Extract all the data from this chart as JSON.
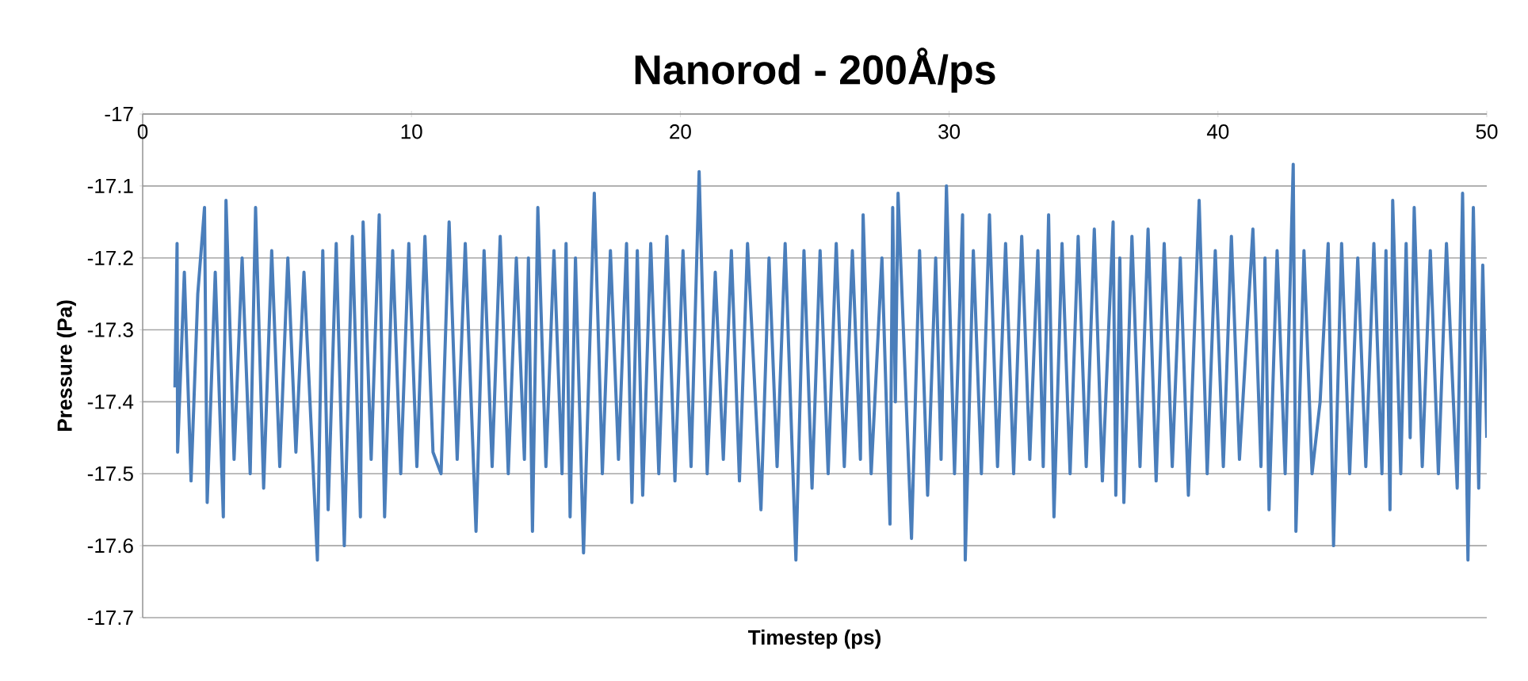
{
  "chart_data": {
    "type": "line",
    "title": "Nanorod - 200Å/ps",
    "xlabel": "Timestep (ps)",
    "ylabel": "Pressure (Pa)",
    "xlim": [
      0,
      50
    ],
    "ylim": [
      -17.7,
      -17
    ],
    "xticks": [
      0,
      10,
      20,
      30,
      40,
      50
    ],
    "yticks": [
      -17.7,
      -17.6,
      -17.5,
      -17.4,
      -17.3,
      -17.2,
      -17.1,
      -17
    ],
    "grid": "y",
    "legend": false,
    "line_style": "solid",
    "x": [
      1.2,
      1.28,
      1.3,
      1.55,
      1.8,
      2.05,
      2.3,
      2.4,
      2.7,
      3.0,
      3.1,
      3.4,
      3.7,
      4.0,
      4.2,
      4.5,
      4.8,
      5.1,
      5.4,
      5.7,
      6.0,
      6.5,
      6.7,
      6.9,
      7.2,
      7.5,
      7.8,
      8.1,
      8.2,
      8.5,
      8.8,
      9.0,
      9.3,
      9.6,
      9.9,
      10.2,
      10.5,
      10.8,
      11.1,
      11.4,
      11.7,
      12.0,
      12.4,
      12.7,
      13.0,
      13.3,
      13.6,
      13.9,
      14.2,
      14.35,
      14.5,
      14.7,
      15.0,
      15.3,
      15.6,
      15.75,
      15.9,
      16.1,
      16.4,
      16.8,
      17.1,
      17.4,
      17.7,
      18.0,
      18.2,
      18.4,
      18.6,
      18.9,
      19.2,
      19.5,
      19.8,
      20.1,
      20.4,
      20.7,
      21.0,
      21.3,
      21.6,
      21.9,
      22.2,
      22.5,
      23.0,
      23.3,
      23.6,
      23.9,
      24.3,
      24.6,
      24.9,
      25.2,
      25.5,
      25.8,
      26.1,
      26.4,
      26.7,
      26.8,
      27.1,
      27.5,
      27.8,
      27.9,
      28.0,
      28.1,
      28.6,
      28.9,
      29.2,
      29.5,
      29.7,
      29.9,
      30.2,
      30.5,
      30.6,
      30.9,
      31.2,
      31.5,
      31.8,
      32.1,
      32.4,
      32.7,
      33.0,
      33.3,
      33.5,
      33.7,
      33.9,
      34.2,
      34.5,
      34.8,
      35.1,
      35.4,
      35.7,
      36.1,
      36.2,
      36.35,
      36.5,
      36.8,
      37.1,
      37.4,
      37.7,
      38.0,
      38.3,
      38.6,
      38.9,
      39.3,
      39.6,
      39.9,
      40.2,
      40.5,
      40.8,
      41.3,
      41.6,
      41.75,
      41.9,
      42.2,
      42.5,
      42.8,
      42.9,
      43.2,
      43.5,
      43.8,
      44.1,
      44.3,
      44.6,
      44.9,
      45.2,
      45.5,
      45.8,
      46.1,
      46.25,
      46.4,
      46.5,
      46.8,
      47.0,
      47.15,
      47.3,
      47.6,
      47.9,
      48.2,
      48.5,
      48.9,
      49.1,
      49.3,
      49.5,
      49.7,
      49.85,
      50.0
    ],
    "series": [
      {
        "color": "#4a7ebb",
        "values": [
          -17.38,
          -17.18,
          -17.47,
          -17.22,
          -17.51,
          -17.25,
          -17.13,
          -17.54,
          -17.22,
          -17.56,
          -17.12,
          -17.48,
          -17.2,
          -17.5,
          -17.13,
          -17.52,
          -17.19,
          -17.49,
          -17.2,
          -17.47,
          -17.22,
          -17.62,
          -17.19,
          -17.55,
          -17.18,
          -17.6,
          -17.17,
          -17.56,
          -17.15,
          -17.48,
          -17.14,
          -17.56,
          -17.19,
          -17.5,
          -17.18,
          -17.49,
          -17.17,
          -17.47,
          -17.5,
          -17.15,
          -17.48,
          -17.18,
          -17.58,
          -17.19,
          -17.49,
          -17.17,
          -17.5,
          -17.2,
          -17.48,
          -17.2,
          -17.58,
          -17.13,
          -17.49,
          -17.19,
          -17.5,
          -17.18,
          -17.56,
          -17.2,
          -17.61,
          -17.11,
          -17.5,
          -17.19,
          -17.48,
          -17.18,
          -17.54,
          -17.19,
          -17.53,
          -17.18,
          -17.5,
          -17.17,
          -17.51,
          -17.19,
          -17.49,
          -17.08,
          -17.5,
          -17.22,
          -17.48,
          -17.19,
          -17.51,
          -17.18,
          -17.55,
          -17.2,
          -17.49,
          -17.18,
          -17.62,
          -17.19,
          -17.52,
          -17.19,
          -17.5,
          -17.18,
          -17.49,
          -17.19,
          -17.48,
          -17.14,
          -17.5,
          -17.2,
          -17.57,
          -17.13,
          -17.4,
          -17.11,
          -17.59,
          -17.19,
          -17.53,
          -17.2,
          -17.48,
          -17.1,
          -17.5,
          -17.14,
          -17.62,
          -17.19,
          -17.5,
          -17.14,
          -17.49,
          -17.18,
          -17.5,
          -17.17,
          -17.48,
          -17.19,
          -17.49,
          -17.14,
          -17.56,
          -17.18,
          -17.5,
          -17.17,
          -17.49,
          -17.16,
          -17.51,
          -17.15,
          -17.53,
          -17.2,
          -17.54,
          -17.17,
          -17.49,
          -17.16,
          -17.51,
          -17.18,
          -17.49,
          -17.2,
          -17.53,
          -17.12,
          -17.5,
          -17.19,
          -17.49,
          -17.17,
          -17.48,
          -17.16,
          -17.49,
          -17.2,
          -17.55,
          -17.19,
          -17.5,
          -17.07,
          -17.58,
          -17.19,
          -17.5,
          -17.4,
          -17.18,
          -17.6,
          -17.18,
          -17.5,
          -17.2,
          -17.49,
          -17.18,
          -17.5,
          -17.19,
          -17.55,
          -17.12,
          -17.5,
          -17.18,
          -17.45,
          -17.13,
          -17.49,
          -17.19,
          -17.5,
          -17.18,
          -17.52,
          -17.11,
          -17.62,
          -17.13,
          -17.52,
          -17.21,
          -17.45
        ]
      }
    ]
  }
}
